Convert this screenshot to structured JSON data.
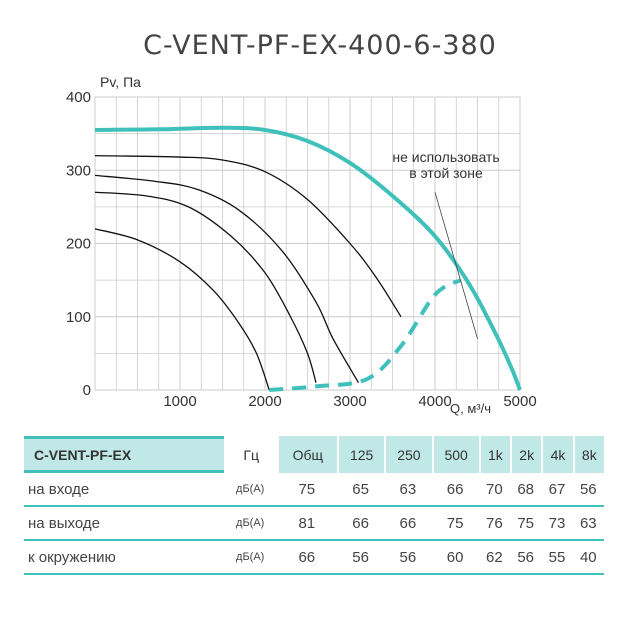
{
  "title": "C-VENT-PF-EX-400-6-380",
  "chart_data": {
    "type": "line",
    "title": "C-VENT-PF-EX-400-6-380",
    "xlabel": "Q, м³/ч",
    "ylabel": "Pv, Па",
    "xlim": [
      0,
      5000
    ],
    "ylim": [
      0,
      400
    ],
    "x_ticks": [
      "1000",
      "2000",
      "3000",
      "4000",
      "5000"
    ],
    "y_ticks": [
      "0",
      "100",
      "200",
      "300",
      "400"
    ],
    "grid": true,
    "annotation": [
      "не использовать",
      "в этой зоне"
    ],
    "colors": {
      "main": "#3fc0ba",
      "speed": "#111111",
      "grid": "#cccccc"
    },
    "series": [
      {
        "style": "main",
        "points": [
          [
            0,
            355
          ],
          [
            800,
            356
          ],
          [
            1500,
            358
          ],
          [
            2000,
            355
          ],
          [
            2500,
            340
          ],
          [
            3000,
            310
          ],
          [
            3500,
            265
          ],
          [
            4000,
            210
          ],
          [
            4400,
            145
          ],
          [
            4700,
            80
          ],
          [
            4900,
            30
          ],
          [
            5000,
            0
          ]
        ]
      },
      {
        "style": "speed",
        "points": [
          [
            0,
            320
          ],
          [
            1000,
            318
          ],
          [
            1500,
            314
          ],
          [
            2000,
            298
          ],
          [
            2500,
            260
          ],
          [
            3000,
            200
          ],
          [
            3300,
            155
          ],
          [
            3600,
            100
          ]
        ]
      },
      {
        "style": "speed",
        "points": [
          [
            0,
            293
          ],
          [
            700,
            285
          ],
          [
            1200,
            274
          ],
          [
            1700,
            245
          ],
          [
            2200,
            190
          ],
          [
            2600,
            120
          ],
          [
            2800,
            70
          ],
          [
            3100,
            10
          ]
        ]
      },
      {
        "style": "speed",
        "points": [
          [
            0,
            270
          ],
          [
            600,
            265
          ],
          [
            1100,
            250
          ],
          [
            1600,
            210
          ],
          [
            2000,
            160
          ],
          [
            2300,
            100
          ],
          [
            2500,
            50
          ],
          [
            2600,
            10
          ]
        ]
      },
      {
        "style": "speed",
        "points": [
          [
            0,
            220
          ],
          [
            500,
            205
          ],
          [
            1000,
            175
          ],
          [
            1400,
            135
          ],
          [
            1700,
            90
          ],
          [
            1900,
            50
          ],
          [
            2050,
            0
          ]
        ]
      },
      {
        "style": "dashed",
        "points": [
          [
            2050,
            0
          ],
          [
            2600,
            5
          ],
          [
            3200,
            15
          ],
          [
            3600,
            60
          ],
          [
            4000,
            130
          ],
          [
            4300,
            150
          ]
        ]
      },
      {
        "style": "limit",
        "points": [
          [
            4000,
            270
          ],
          [
            4500,
            70
          ]
        ]
      }
    ]
  },
  "table": {
    "header": [
      "C-VENT-PF-EX",
      "Гц",
      "Общ",
      "125",
      "250",
      "500",
      "1k",
      "2k",
      "4k",
      "8k"
    ],
    "rows": [
      {
        "label": "на входе",
        "unit": "дБ(А)",
        "values": [
          "75",
          "65",
          "63",
          "66",
          "70",
          "68",
          "67",
          "56"
        ]
      },
      {
        "label": "на выходе",
        "unit": "дБ(А)",
        "values": [
          "81",
          "66",
          "66",
          "75",
          "76",
          "75",
          "73",
          "63"
        ]
      },
      {
        "label": "к окружению",
        "unit": "дБ(А)",
        "values": [
          "66",
          "56",
          "56",
          "60",
          "62",
          "56",
          "55",
          "40"
        ]
      }
    ]
  }
}
